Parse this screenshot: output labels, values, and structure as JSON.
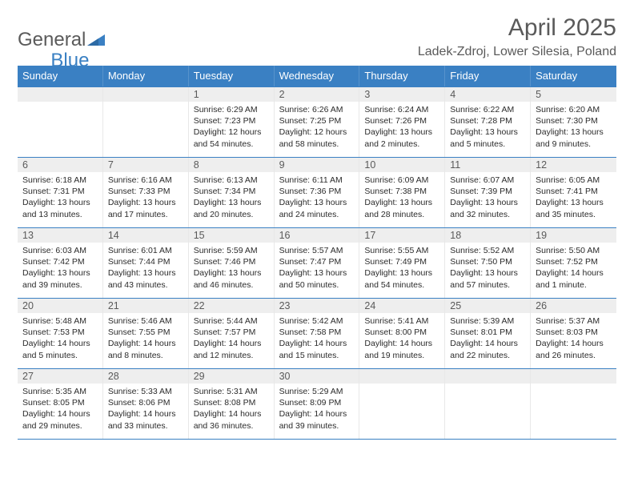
{
  "logo": {
    "part1": "General",
    "part2": "Blue"
  },
  "title": "April 2025",
  "location": "Ladek-Zdroj, Lower Silesia, Poland",
  "colors": {
    "accent": "#3a80c3",
    "header_text": "#ffffff",
    "daynum_bg": "#eeeeee",
    "text_muted": "#5a5a5a",
    "text": "#2b2b2b"
  },
  "weekday_labels": [
    "Sunday",
    "Monday",
    "Tuesday",
    "Wednesday",
    "Thursday",
    "Friday",
    "Saturday"
  ],
  "weeks": [
    [
      {
        "day": "",
        "sunrise": "",
        "sunset": "",
        "daylight": ""
      },
      {
        "day": "",
        "sunrise": "",
        "sunset": "",
        "daylight": ""
      },
      {
        "day": "1",
        "sunrise": "Sunrise: 6:29 AM",
        "sunset": "Sunset: 7:23 PM",
        "daylight": "Daylight: 12 hours and 54 minutes."
      },
      {
        "day": "2",
        "sunrise": "Sunrise: 6:26 AM",
        "sunset": "Sunset: 7:25 PM",
        "daylight": "Daylight: 12 hours and 58 minutes."
      },
      {
        "day": "3",
        "sunrise": "Sunrise: 6:24 AM",
        "sunset": "Sunset: 7:26 PM",
        "daylight": "Daylight: 13 hours and 2 minutes."
      },
      {
        "day": "4",
        "sunrise": "Sunrise: 6:22 AM",
        "sunset": "Sunset: 7:28 PM",
        "daylight": "Daylight: 13 hours and 5 minutes."
      },
      {
        "day": "5",
        "sunrise": "Sunrise: 6:20 AM",
        "sunset": "Sunset: 7:30 PM",
        "daylight": "Daylight: 13 hours and 9 minutes."
      }
    ],
    [
      {
        "day": "6",
        "sunrise": "Sunrise: 6:18 AM",
        "sunset": "Sunset: 7:31 PM",
        "daylight": "Daylight: 13 hours and 13 minutes."
      },
      {
        "day": "7",
        "sunrise": "Sunrise: 6:16 AM",
        "sunset": "Sunset: 7:33 PM",
        "daylight": "Daylight: 13 hours and 17 minutes."
      },
      {
        "day": "8",
        "sunrise": "Sunrise: 6:13 AM",
        "sunset": "Sunset: 7:34 PM",
        "daylight": "Daylight: 13 hours and 20 minutes."
      },
      {
        "day": "9",
        "sunrise": "Sunrise: 6:11 AM",
        "sunset": "Sunset: 7:36 PM",
        "daylight": "Daylight: 13 hours and 24 minutes."
      },
      {
        "day": "10",
        "sunrise": "Sunrise: 6:09 AM",
        "sunset": "Sunset: 7:38 PM",
        "daylight": "Daylight: 13 hours and 28 minutes."
      },
      {
        "day": "11",
        "sunrise": "Sunrise: 6:07 AM",
        "sunset": "Sunset: 7:39 PM",
        "daylight": "Daylight: 13 hours and 32 minutes."
      },
      {
        "day": "12",
        "sunrise": "Sunrise: 6:05 AM",
        "sunset": "Sunset: 7:41 PM",
        "daylight": "Daylight: 13 hours and 35 minutes."
      }
    ],
    [
      {
        "day": "13",
        "sunrise": "Sunrise: 6:03 AM",
        "sunset": "Sunset: 7:42 PM",
        "daylight": "Daylight: 13 hours and 39 minutes."
      },
      {
        "day": "14",
        "sunrise": "Sunrise: 6:01 AM",
        "sunset": "Sunset: 7:44 PM",
        "daylight": "Daylight: 13 hours and 43 minutes."
      },
      {
        "day": "15",
        "sunrise": "Sunrise: 5:59 AM",
        "sunset": "Sunset: 7:46 PM",
        "daylight": "Daylight: 13 hours and 46 minutes."
      },
      {
        "day": "16",
        "sunrise": "Sunrise: 5:57 AM",
        "sunset": "Sunset: 7:47 PM",
        "daylight": "Daylight: 13 hours and 50 minutes."
      },
      {
        "day": "17",
        "sunrise": "Sunrise: 5:55 AM",
        "sunset": "Sunset: 7:49 PM",
        "daylight": "Daylight: 13 hours and 54 minutes."
      },
      {
        "day": "18",
        "sunrise": "Sunrise: 5:52 AM",
        "sunset": "Sunset: 7:50 PM",
        "daylight": "Daylight: 13 hours and 57 minutes."
      },
      {
        "day": "19",
        "sunrise": "Sunrise: 5:50 AM",
        "sunset": "Sunset: 7:52 PM",
        "daylight": "Daylight: 14 hours and 1 minute."
      }
    ],
    [
      {
        "day": "20",
        "sunrise": "Sunrise: 5:48 AM",
        "sunset": "Sunset: 7:53 PM",
        "daylight": "Daylight: 14 hours and 5 minutes."
      },
      {
        "day": "21",
        "sunrise": "Sunrise: 5:46 AM",
        "sunset": "Sunset: 7:55 PM",
        "daylight": "Daylight: 14 hours and 8 minutes."
      },
      {
        "day": "22",
        "sunrise": "Sunrise: 5:44 AM",
        "sunset": "Sunset: 7:57 PM",
        "daylight": "Daylight: 14 hours and 12 minutes."
      },
      {
        "day": "23",
        "sunrise": "Sunrise: 5:42 AM",
        "sunset": "Sunset: 7:58 PM",
        "daylight": "Daylight: 14 hours and 15 minutes."
      },
      {
        "day": "24",
        "sunrise": "Sunrise: 5:41 AM",
        "sunset": "Sunset: 8:00 PM",
        "daylight": "Daylight: 14 hours and 19 minutes."
      },
      {
        "day": "25",
        "sunrise": "Sunrise: 5:39 AM",
        "sunset": "Sunset: 8:01 PM",
        "daylight": "Daylight: 14 hours and 22 minutes."
      },
      {
        "day": "26",
        "sunrise": "Sunrise: 5:37 AM",
        "sunset": "Sunset: 8:03 PM",
        "daylight": "Daylight: 14 hours and 26 minutes."
      }
    ],
    [
      {
        "day": "27",
        "sunrise": "Sunrise: 5:35 AM",
        "sunset": "Sunset: 8:05 PM",
        "daylight": "Daylight: 14 hours and 29 minutes."
      },
      {
        "day": "28",
        "sunrise": "Sunrise: 5:33 AM",
        "sunset": "Sunset: 8:06 PM",
        "daylight": "Daylight: 14 hours and 33 minutes."
      },
      {
        "day": "29",
        "sunrise": "Sunrise: 5:31 AM",
        "sunset": "Sunset: 8:08 PM",
        "daylight": "Daylight: 14 hours and 36 minutes."
      },
      {
        "day": "30",
        "sunrise": "Sunrise: 5:29 AM",
        "sunset": "Sunset: 8:09 PM",
        "daylight": "Daylight: 14 hours and 39 minutes."
      },
      {
        "day": "",
        "sunrise": "",
        "sunset": "",
        "daylight": ""
      },
      {
        "day": "",
        "sunrise": "",
        "sunset": "",
        "daylight": ""
      },
      {
        "day": "",
        "sunrise": "",
        "sunset": "",
        "daylight": ""
      }
    ]
  ]
}
